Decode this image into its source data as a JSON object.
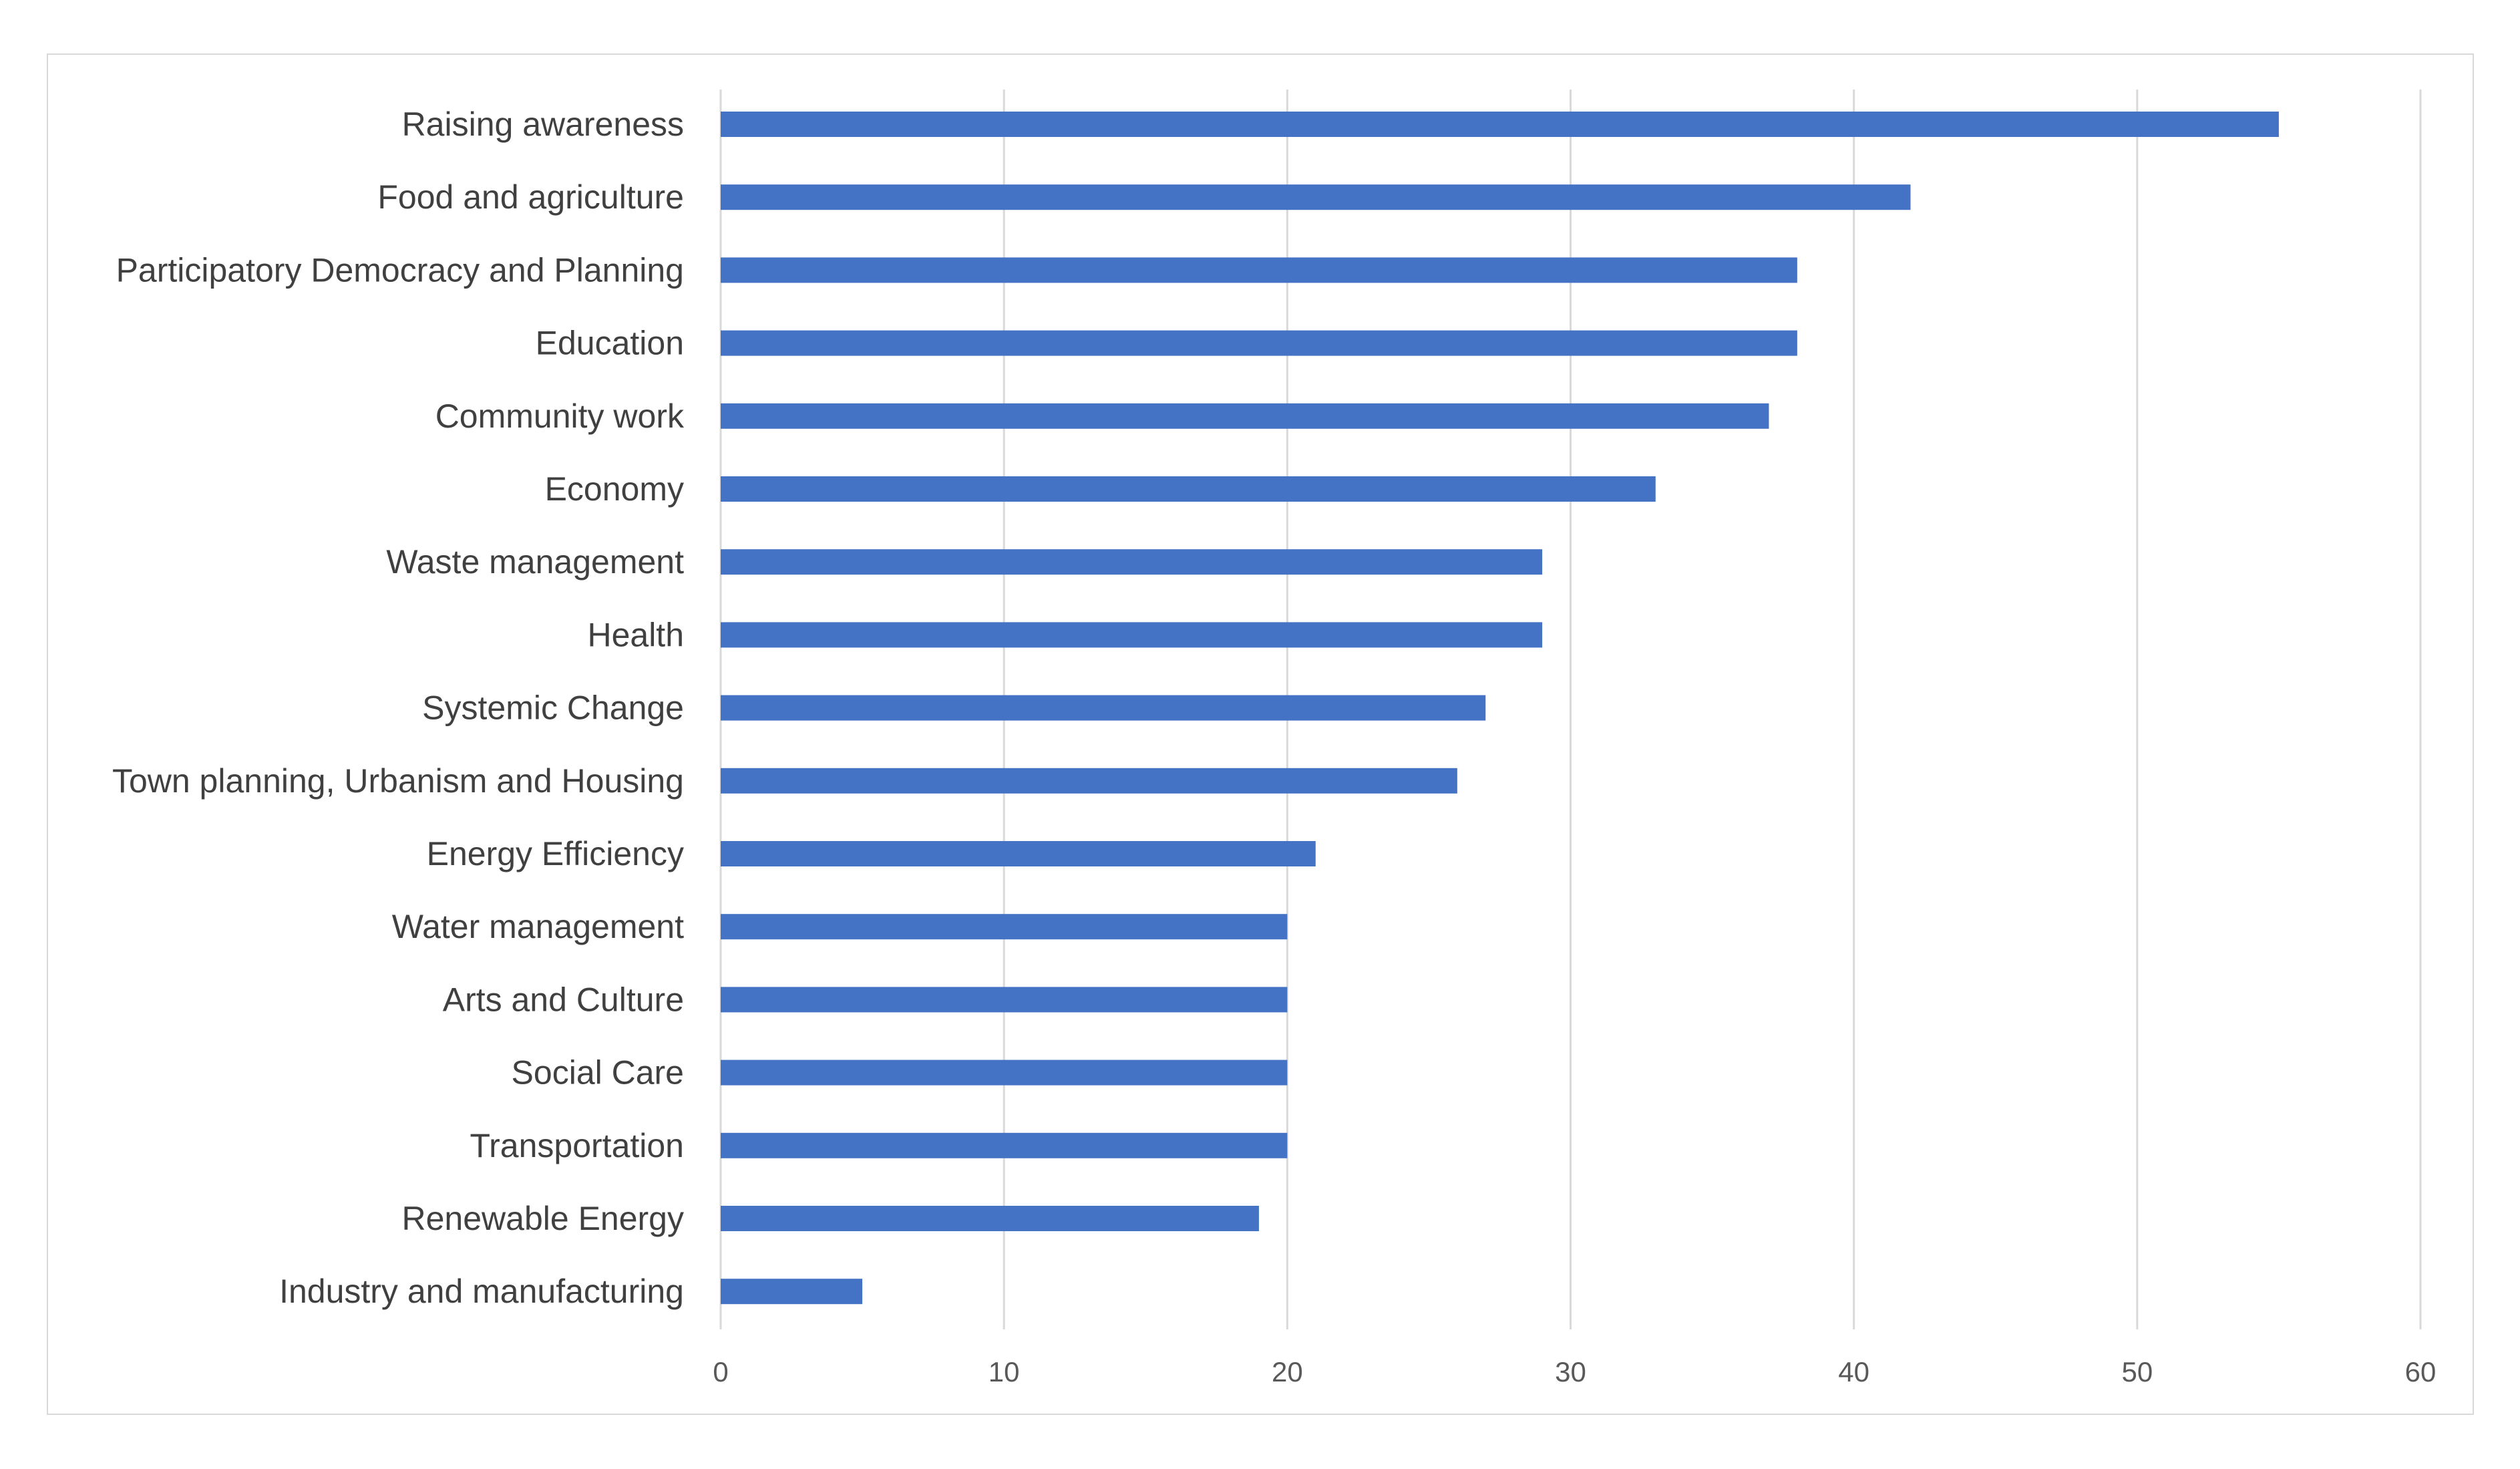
{
  "chart_data": {
    "type": "bar",
    "orientation": "horizontal",
    "title": "",
    "xlabel": "",
    "ylabel": "",
    "categories": [
      "Raising awareness",
      "Food and agriculture",
      "Participatory Democracy and Planning",
      "Education",
      "Community work",
      "Economy",
      "Waste management",
      "Health",
      "Systemic Change",
      "Town planning, Urbanism and Housing",
      "Energy Efficiency",
      "Water management",
      "Arts and Culture",
      "Social Care",
      "Transportation",
      "Renewable Energy",
      "Industry and manufacturing"
    ],
    "values": [
      55,
      42,
      38,
      38,
      37,
      33,
      29,
      29,
      27,
      26,
      21,
      20,
      20,
      20,
      20,
      19,
      5
    ],
    "xlim": [
      0,
      60
    ],
    "xticks": [
      "0",
      "10",
      "20",
      "30",
      "40",
      "50",
      "60"
    ],
    "grid": "vertical",
    "legend": "none",
    "bar_color": "#4472c4"
  }
}
